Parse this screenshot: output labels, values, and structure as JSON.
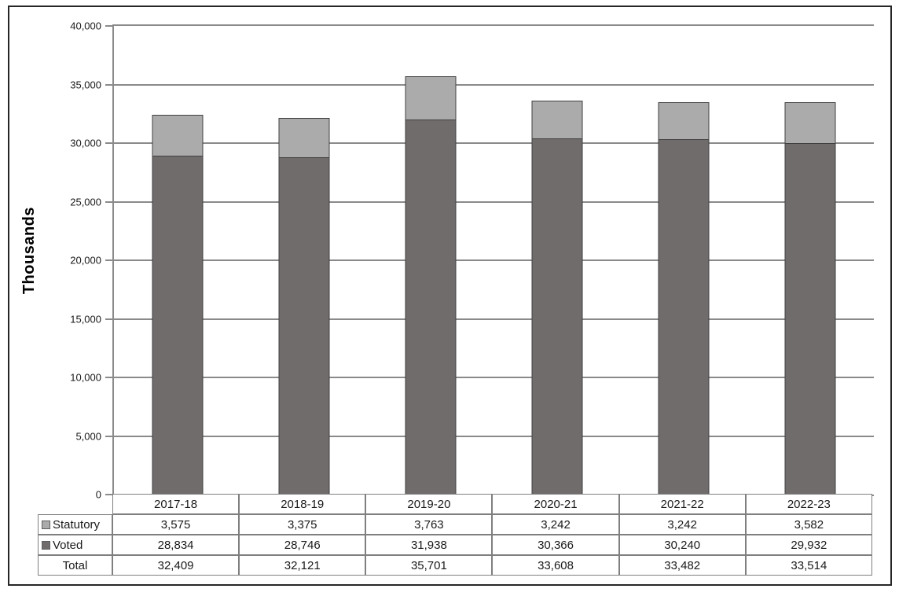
{
  "chart_data": {
    "type": "bar",
    "stacked": true,
    "title": "",
    "xlabel": "",
    "ylabel": "Thousands",
    "ylim": [
      0,
      40000
    ],
    "grid": true,
    "legend_position": "table-left",
    "categories": [
      "2017-18",
      "2018-19",
      "2019-20",
      "2020-21",
      "2021-22",
      "2022-23"
    ],
    "series": [
      {
        "name": "Statutory",
        "color": "#ABABAB",
        "values": [
          3575,
          3375,
          3763,
          3242,
          3242,
          3582
        ],
        "labels": [
          "3,575",
          "3,375",
          "3,763",
          "3,242",
          "3,242",
          "3,582"
        ]
      },
      {
        "name": "Voted",
        "color": "#716C6C",
        "values": [
          28834,
          28746,
          31938,
          30366,
          30240,
          29932
        ],
        "labels": [
          "28,834",
          "28,746",
          "31,938",
          "30,366",
          "30,240",
          "29,932"
        ]
      }
    ],
    "totals": {
      "name": "Total",
      "values": [
        32409,
        32121,
        35701,
        33608,
        33482,
        33514
      ],
      "labels": [
        "32,409",
        "32,121",
        "35,701",
        "33,608",
        "33,482",
        "33,514"
      ]
    },
    "yticks": [
      {
        "value": 0,
        "label": "0"
      },
      {
        "value": 5000,
        "label": "5,000"
      },
      {
        "value": 10000,
        "label": "10,000"
      },
      {
        "value": 15000,
        "label": "15,000"
      },
      {
        "value": 20000,
        "label": "20,000"
      },
      {
        "value": 25000,
        "label": "25,000"
      },
      {
        "value": 30000,
        "label": "30,000"
      },
      {
        "value": 35000,
        "label": "35,000"
      },
      {
        "value": 40000,
        "label": "40,000"
      }
    ],
    "colors": {
      "gridline": "#8a8a8a",
      "axis": "#8a8a8a",
      "bar_border": "#404040",
      "table_border": "#7f7f7f",
      "frame_border": "#262626"
    }
  }
}
